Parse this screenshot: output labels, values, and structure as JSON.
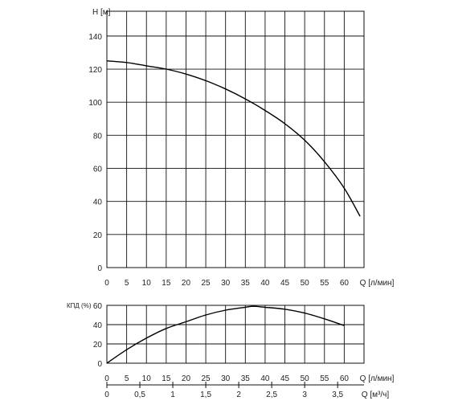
{
  "chart_data": [
    {
      "type": "line",
      "ylabel": "H [м]",
      "xlabel": "Q [л/мин]",
      "x_ticks": [
        0,
        5,
        10,
        15,
        20,
        25,
        30,
        35,
        40,
        45,
        50,
        55,
        60
      ],
      "y_ticks": [
        0,
        20,
        40,
        60,
        80,
        100,
        120,
        140
      ],
      "xlim": [
        0,
        65
      ],
      "ylim": [
        0,
        155
      ],
      "grid": true,
      "series": [
        {
          "x": [
            0,
            5,
            10,
            15,
            20,
            25,
            30,
            35,
            40,
            45,
            50,
            55,
            60,
            64
          ],
          "y": [
            125,
            124,
            122,
            120,
            117,
            113,
            108,
            102,
            95,
            87,
            77,
            64,
            48,
            31
          ]
        }
      ]
    },
    {
      "type": "line",
      "ylabel": "КПД (%)",
      "xlabel": "Q [л/мин]",
      "x_ticks": [
        0,
        5,
        10,
        15,
        20,
        25,
        30,
        35,
        40,
        45,
        50,
        55,
        60
      ],
      "y_ticks": [
        0,
        20,
        40,
        60
      ],
      "xlim": [
        0,
        65
      ],
      "ylim": [
        0,
        60
      ],
      "grid": true,
      "series": [
        {
          "x": [
            0,
            5,
            10,
            15,
            20,
            25,
            30,
            35,
            37,
            40,
            45,
            50,
            55,
            60
          ],
          "y": [
            0,
            14,
            26,
            36,
            43,
            50,
            55,
            58,
            59,
            58,
            56,
            52,
            46,
            39
          ]
        }
      ]
    }
  ],
  "secondary_axis": {
    "label": "Q [м³/ч]",
    "ticks": [
      "0",
      "0,5",
      "1",
      "1,5",
      "2",
      "2,5",
      "3",
      "3,5"
    ],
    "values": [
      0,
      0.5,
      1,
      1.5,
      2,
      2.5,
      3,
      3.5
    ]
  }
}
